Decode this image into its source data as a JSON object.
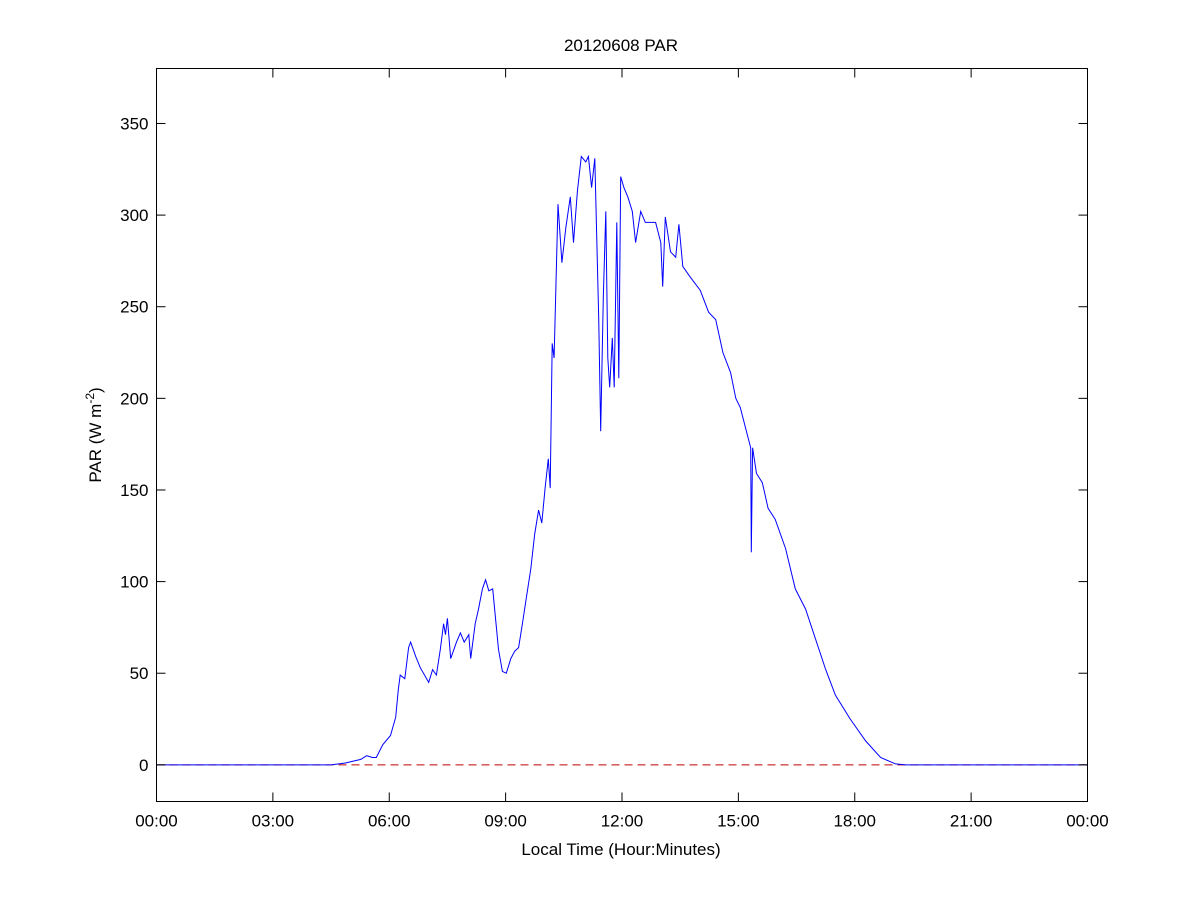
{
  "chart_data": {
    "type": "line",
    "title": "20120608 PAR",
    "xlabel": "Local Time (Hour:Minutes)",
    "ylabel": "PAR (W m-2)",
    "ylabel_parts": {
      "main": "PAR (W m",
      "sup": "-2",
      "close": ")"
    },
    "xlim": [
      "00:00",
      "24:00"
    ],
    "ylim": [
      -20,
      380
    ],
    "x_ticks": [
      "00:00",
      "03:00",
      "06:00",
      "09:00",
      "12:00",
      "15:00",
      "18:00",
      "21:00",
      "00:00"
    ],
    "y_ticks": [
      0,
      50,
      100,
      150,
      200,
      250,
      300,
      350
    ],
    "grid": false,
    "series": [
      {
        "color": "#0000ff",
        "style": "solid",
        "x": [
          "00:00",
          "04:30",
          "04:52",
          "05:16",
          "05:25",
          "05:34",
          "05:40",
          "05:50",
          "06:02",
          "06:10",
          "06:14",
          "06:17",
          "06:24",
          "06:30",
          "06:33",
          "06:41",
          "06:48",
          "07:01",
          "07:07",
          "07:13",
          "07:19",
          "07:24",
          "07:27",
          "07:30",
          "07:35",
          "07:44",
          "07:50",
          "07:56",
          "08:03",
          "08:06",
          "08:13",
          "08:18",
          "08:24",
          "08:29",
          "08:34",
          "08:40",
          "08:49",
          "08:55",
          "09:01",
          "09:08",
          "09:14",
          "09:20",
          "09:26",
          "09:32",
          "09:39",
          "09:45",
          "09:51",
          "09:56",
          "10:01",
          "10:06",
          "10:09",
          "10:12",
          "10:15",
          "10:21",
          "10:27",
          "10:33",
          "10:40",
          "10:45",
          "10:51",
          "10:57",
          "11:04",
          "11:08",
          "11:13",
          "11:18",
          "11:24",
          "11:27",
          "11:31",
          "11:35",
          "11:38",
          "11:41",
          "11:45",
          "11:48",
          "11:52",
          "11:55",
          "11:58",
          "12:03",
          "12:09",
          "12:16",
          "12:21",
          "12:29",
          "12:36",
          "12:52",
          "13:00",
          "13:03",
          "13:07",
          "13:15",
          "13:23",
          "13:28",
          "13:34",
          "13:46",
          "14:01",
          "14:14",
          "14:25",
          "14:36",
          "14:48",
          "14:56",
          "15:03",
          "15:11",
          "15:19",
          "15:20",
          "15:22",
          "15:28",
          "15:37",
          "15:46",
          "15:57",
          "16:13",
          "16:28",
          "16:44",
          "16:59",
          "17:15",
          "17:30",
          "17:53",
          "18:17",
          "18:40",
          "19:03",
          "19:19",
          "24:00"
        ],
        "y": [
          0,
          0,
          1,
          3,
          5,
          4,
          4,
          11,
          16,
          26,
          41,
          49,
          47,
          64,
          67,
          59,
          53,
          45,
          52,
          49,
          63,
          77,
          71,
          80,
          58,
          67,
          72,
          67,
          71,
          58,
          77,
          85,
          96,
          101,
          95,
          96,
          63,
          51,
          50,
          58,
          62,
          64,
          77,
          91,
          107,
          126,
          139,
          132,
          151,
          167,
          151,
          230,
          222,
          306,
          274,
          293,
          310,
          285,
          313,
          332,
          329,
          332,
          315,
          331,
          244,
          182,
          255,
          302,
          222,
          206,
          233,
          206,
          296,
          211,
          321,
          315,
          310,
          302,
          285,
          302,
          296,
          296,
          285,
          261,
          299,
          280,
          277,
          295,
          272,
          266,
          259,
          247,
          243,
          225,
          214,
          200,
          195,
          184,
          173,
          116,
          173,
          159,
          154,
          140,
          134,
          118,
          96,
          85,
          69,
          52,
          38,
          25,
          13,
          4,
          0.5,
          0,
          0
        ]
      },
      {
        "color": "#c00000",
        "style": "dashed",
        "x": [
          "00:00",
          "24:00"
        ],
        "y": [
          0,
          0
        ]
      }
    ]
  }
}
